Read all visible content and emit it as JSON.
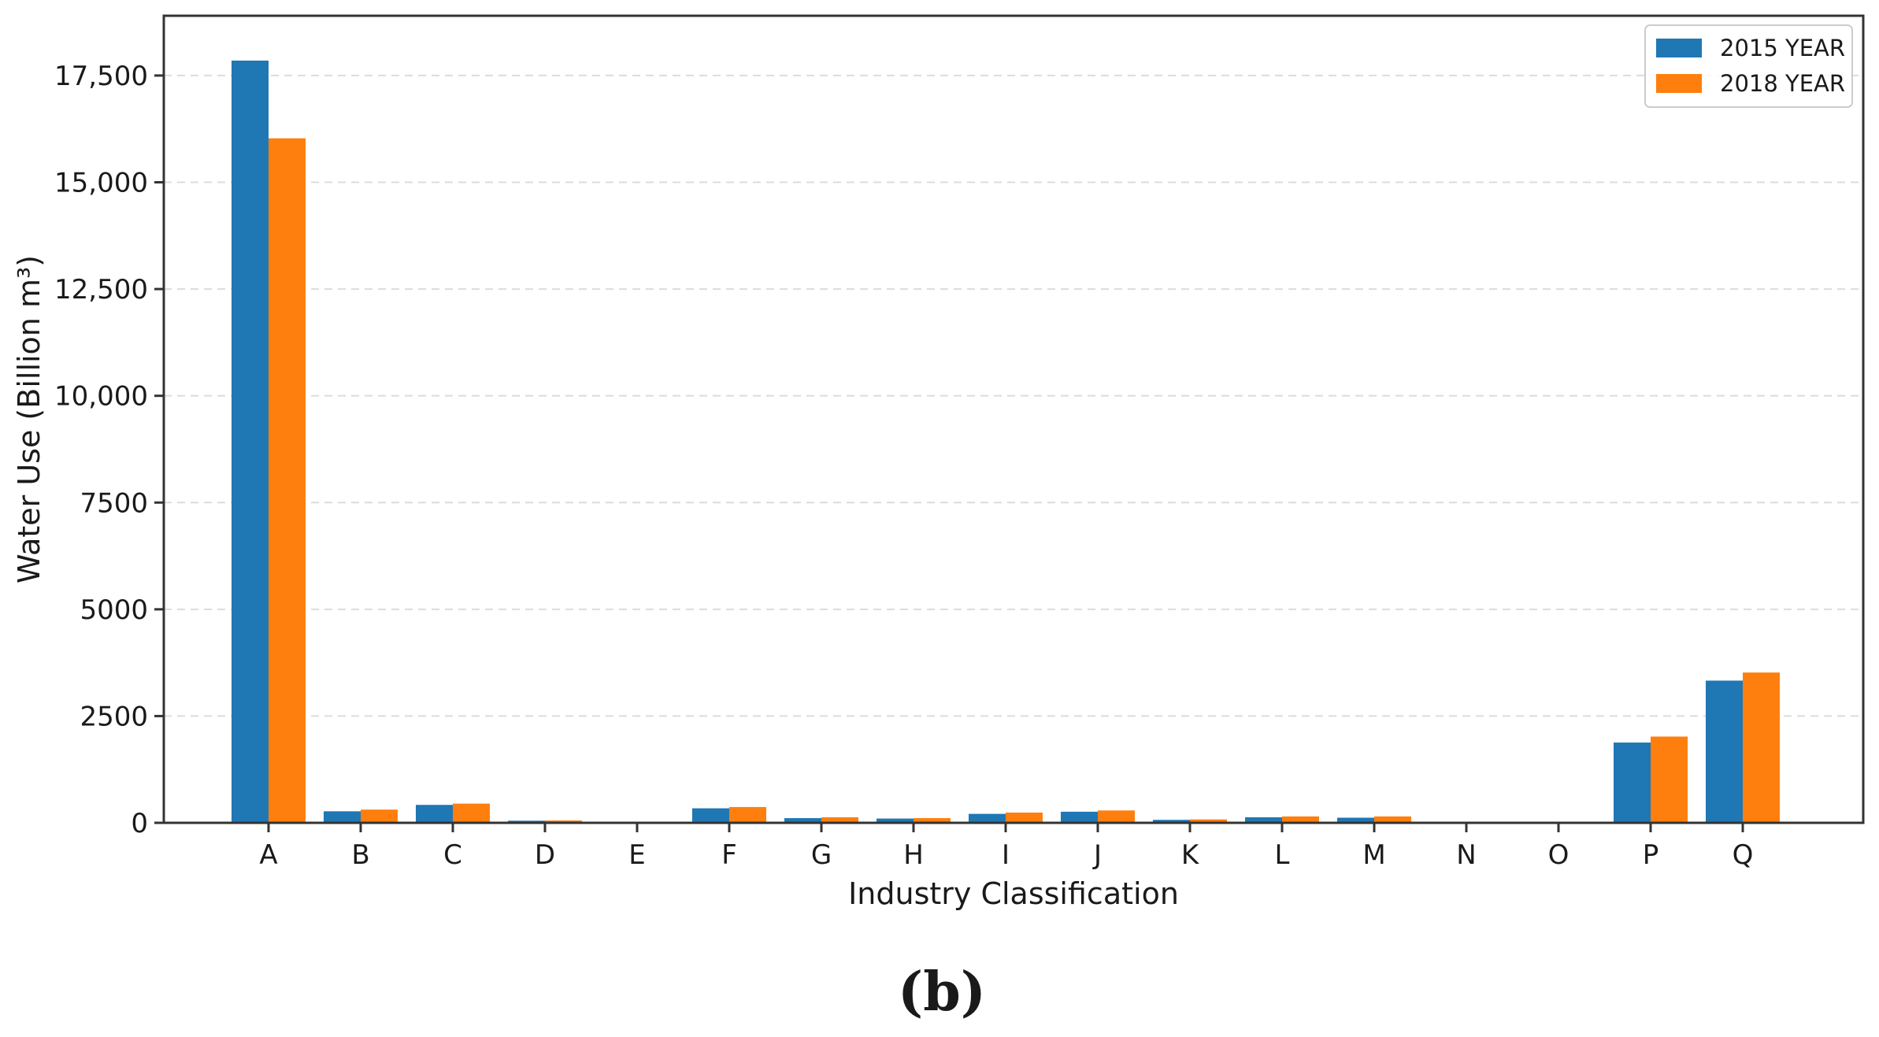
{
  "chart_data": {
    "type": "bar",
    "categories": [
      "A",
      "B",
      "C",
      "D",
      "E",
      "F",
      "G",
      "H",
      "I",
      "J",
      "K",
      "L",
      "M",
      "N",
      "O",
      "P",
      "Q"
    ],
    "series": [
      {
        "name": "2015 YEAR",
        "color": "#1f77b4",
        "values": [
          17850,
          270,
          420,
          50,
          5,
          340,
          110,
          100,
          210,
          260,
          70,
          130,
          120,
          5,
          5,
          1880,
          3330
        ]
      },
      {
        "name": "2018 YEAR",
        "color": "#ff7f0e",
        "values": [
          16030,
          310,
          450,
          55,
          5,
          370,
          130,
          110,
          240,
          290,
          80,
          150,
          150,
          5,
          5,
          2020,
          3520
        ]
      }
    ],
    "xlabel": "Industry Classification",
    "ylabel": "Water Use (Billion m³)",
    "ylim": [
      0,
      18900
    ],
    "yticks": [
      0,
      2500,
      5000,
      7500,
      10000,
      12500,
      15000,
      17500
    ],
    "ytick_labels": [
      "0",
      "2500",
      "5000",
      "7500",
      "10,000",
      "12,500",
      "15,000",
      "17,500"
    ],
    "grid": "horizontal dashed",
    "legend_position": "top-right"
  },
  "caption": "(b)"
}
